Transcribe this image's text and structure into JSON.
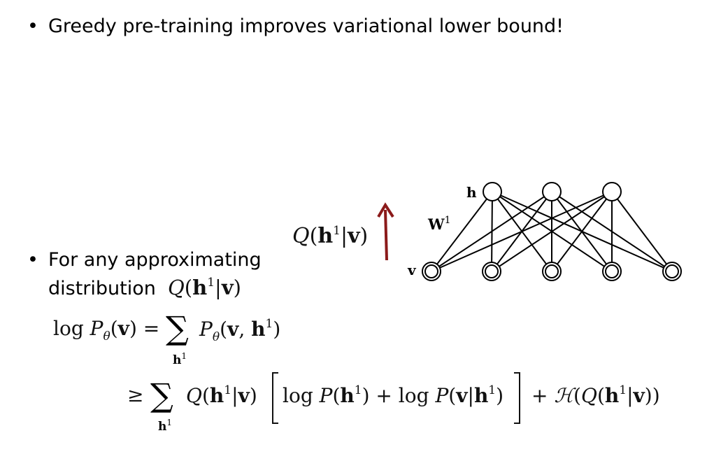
{
  "bullets": {
    "b1": "Greedy pre-training improves variational lower bound!",
    "b2_line1": "For any approximating",
    "b2_line2": "distribution"
  },
  "labels": {
    "hidden": "h",
    "visible": "v",
    "weights": "W",
    "weights_sup": "1"
  },
  "arrow_color": "#8b1a1a"
}
